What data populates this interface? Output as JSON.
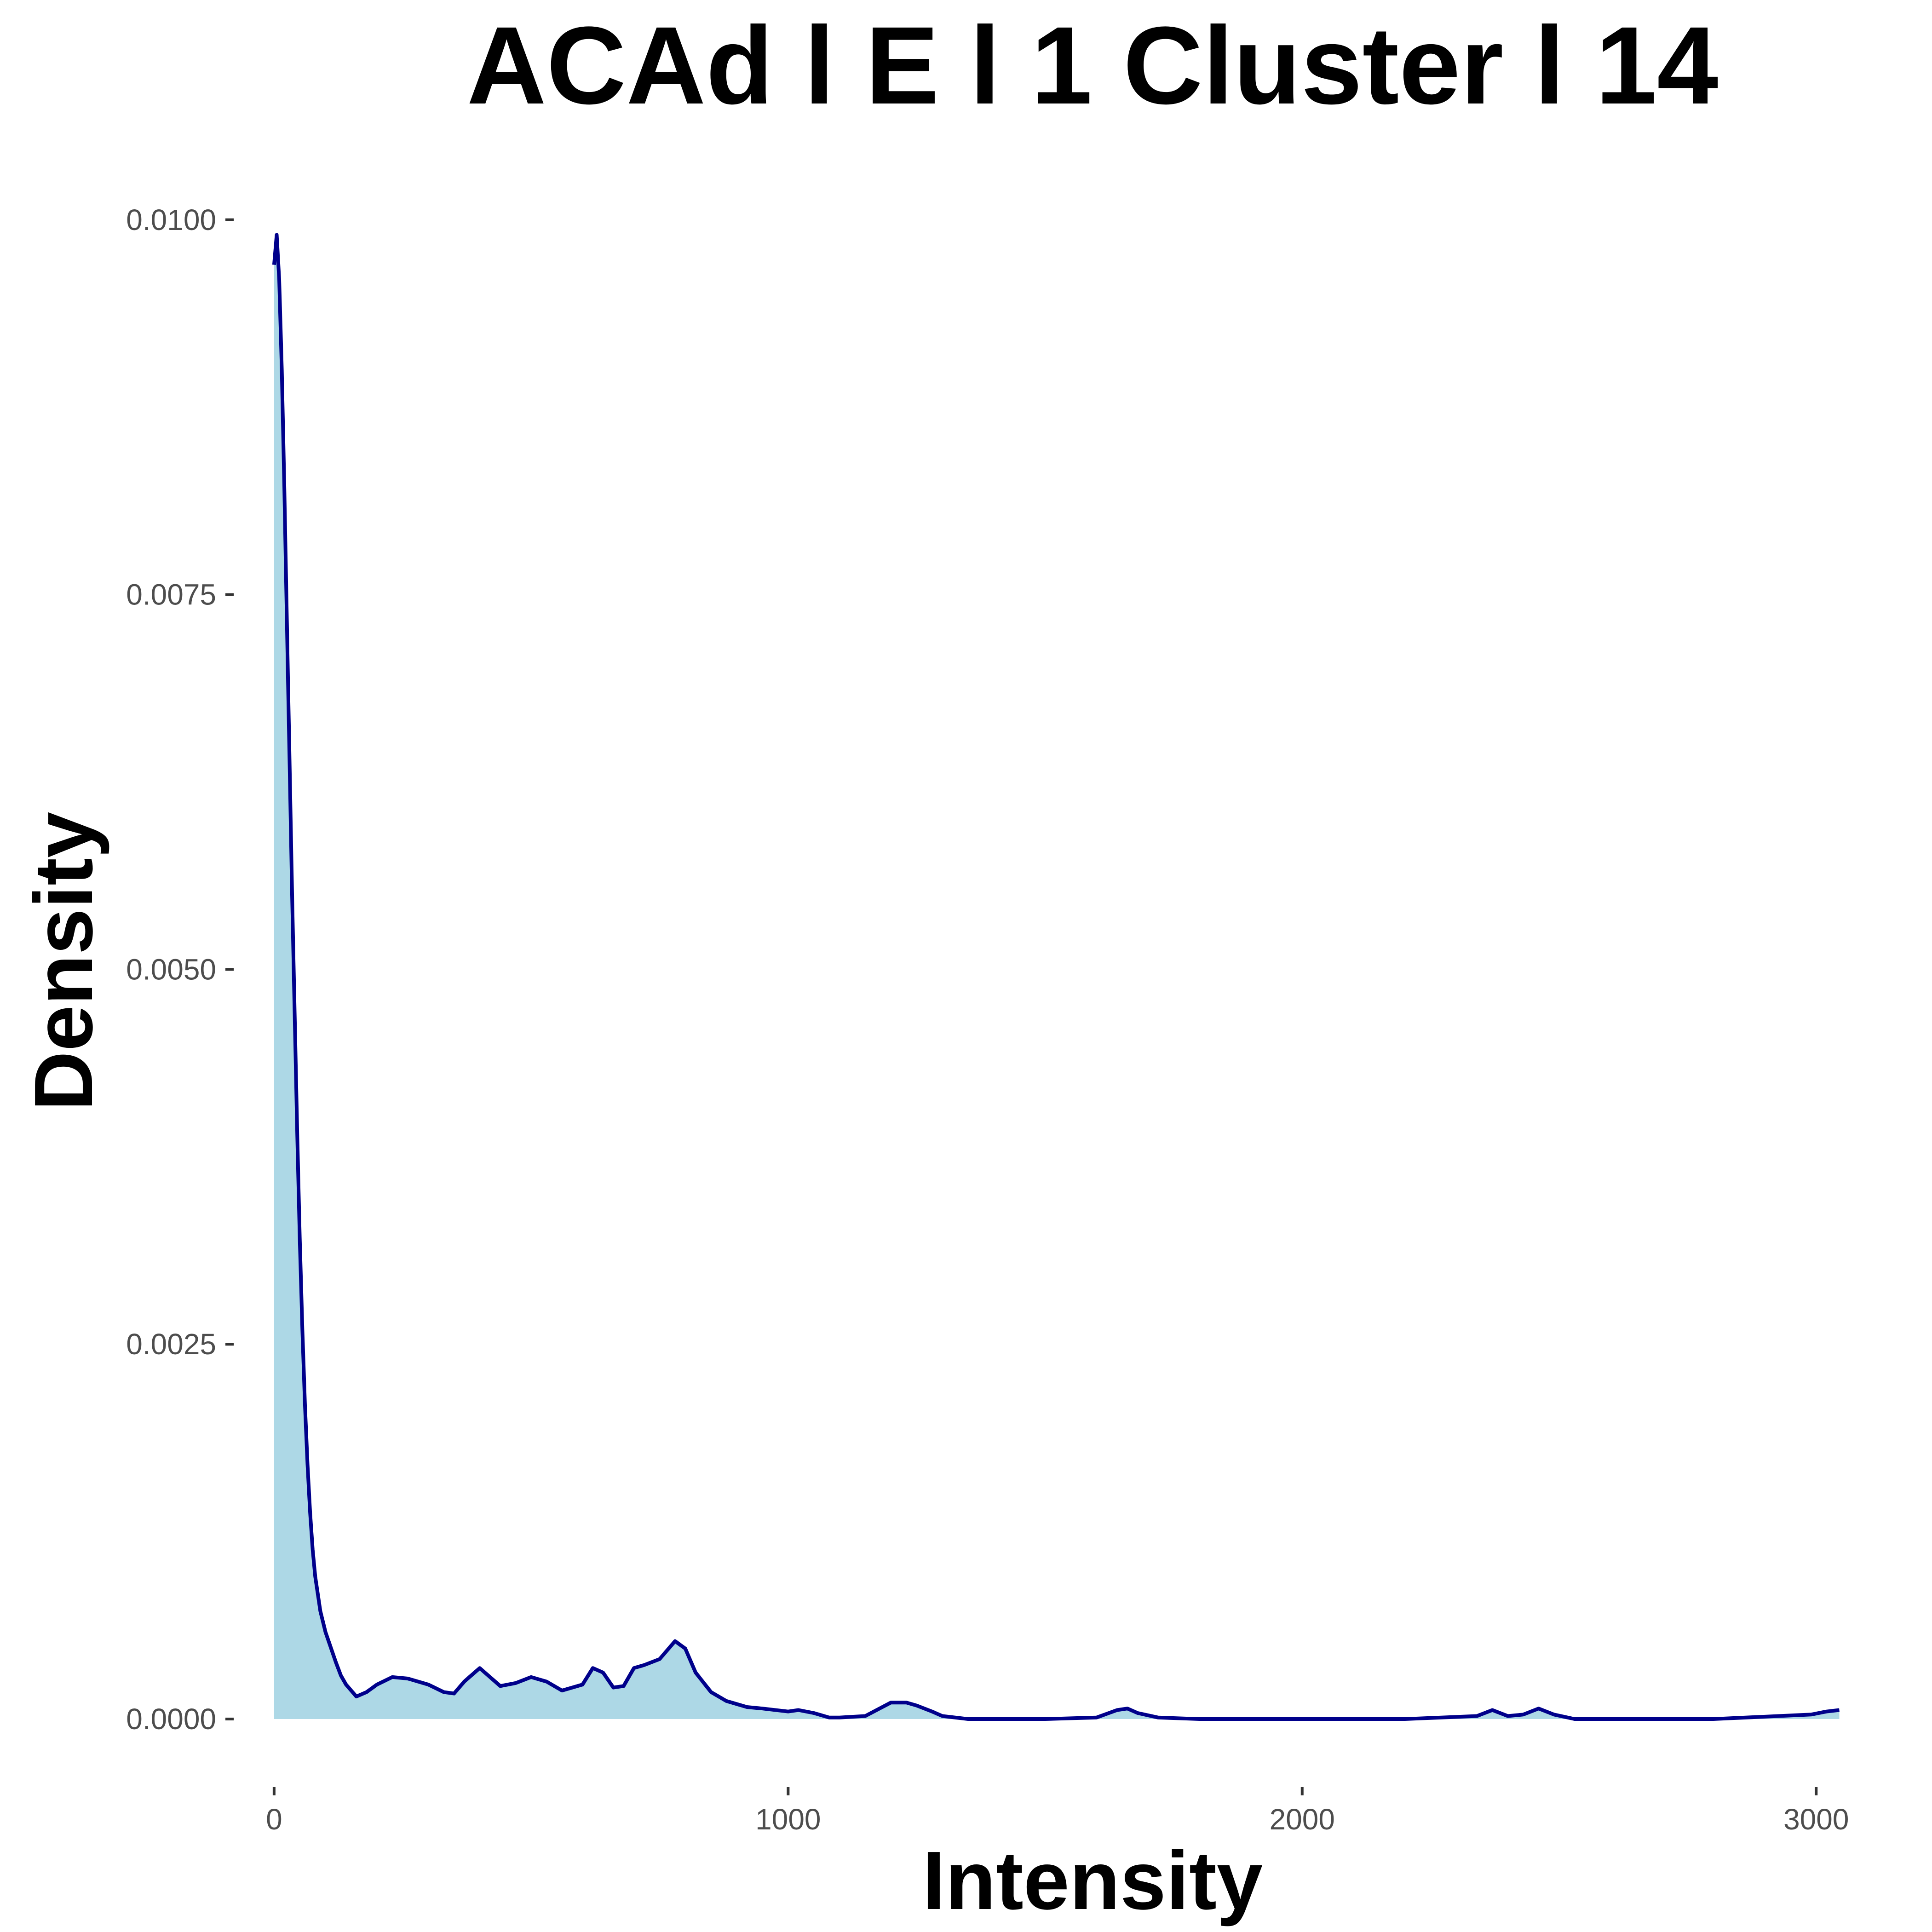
{
  "chart_data": {
    "type": "area",
    "title": "ACAd l E l 1 Cluster l  14",
    "xlabel": "Intensity",
    "ylabel": "Density",
    "xlim": [
      -50,
      3100
    ],
    "ylim": [
      -0.0005,
      0.0103
    ],
    "x_ticks": [
      0,
      1000,
      2000,
      3000
    ],
    "x_tick_labels": [
      "0",
      "1000",
      "2000",
      "3000"
    ],
    "y_ticks": [
      0,
      0.0025,
      0.005,
      0.0075,
      0.01
    ],
    "y_tick_labels": [
      "0.0000",
      "0.0025",
      "0.0050",
      "0.0075",
      "0.0100"
    ],
    "grid": false,
    "legend": "none",
    "colors": {
      "fill": "#ADD8E6",
      "line": "#00008B"
    },
    "series": [
      {
        "x": [
          0,
          5,
          10,
          15,
          20,
          25,
          30,
          35,
          40,
          45,
          50,
          55,
          60,
          65,
          70,
          75,
          80,
          90,
          100,
          110,
          120,
          130,
          140,
          160,
          180,
          200,
          230,
          260,
          280,
          300,
          330,
          350,
          370,
          400,
          420,
          440,
          470,
          500,
          530,
          560,
          600,
          620,
          640,
          660,
          680,
          700,
          720,
          750,
          780,
          800,
          820,
          850,
          880,
          920,
          950,
          1000,
          1020,
          1050,
          1080,
          1100,
          1150,
          1200,
          1230,
          1250,
          1280,
          1300,
          1350,
          1400,
          1500,
          1600,
          1640,
          1660,
          1680,
          1720,
          1800,
          2000,
          2200,
          2340,
          2370,
          2400,
          2430,
          2460,
          2490,
          2530,
          2600,
          2800,
          2990,
          3020,
          3045
        ],
        "y": [
          0.0097,
          0.0099,
          0.0096,
          0.009,
          0.0082,
          0.0073,
          0.0064,
          0.0055,
          0.0047,
          0.0039,
          0.0032,
          0.0026,
          0.0021,
          0.0017,
          0.00138,
          0.00113,
          0.00095,
          0.00072,
          0.00058,
          0.00048,
          0.00038,
          0.00029,
          0.00023,
          0.00015,
          0.00018,
          0.00023,
          0.00028,
          0.00027,
          0.00025,
          0.00023,
          0.00018,
          0.00017,
          0.00025,
          0.00034,
          0.00028,
          0.00022,
          0.00024,
          0.00028,
          0.00025,
          0.00019,
          0.00023,
          0.00034,
          0.00031,
          0.00021,
          0.00022,
          0.00034,
          0.00036,
          0.0004,
          0.00052,
          0.00047,
          0.00031,
          0.00018,
          0.00012,
          8e-05,
          7e-05,
          5e-05,
          6e-05,
          4e-05,
          1e-05,
          1e-05,
          2e-05,
          0.00011,
          0.00011,
          9e-05,
          5e-05,
          2e-05,
          0.0,
          0.0,
          0.0,
          1e-05,
          6e-05,
          7e-05,
          4e-05,
          1e-05,
          0.0,
          0.0,
          0.0,
          2e-05,
          6e-05,
          2e-05,
          3e-05,
          7e-05,
          3e-05,
          0.0,
          0.0,
          0.0,
          3e-05,
          5e-05,
          6e-05
        ]
      }
    ]
  }
}
